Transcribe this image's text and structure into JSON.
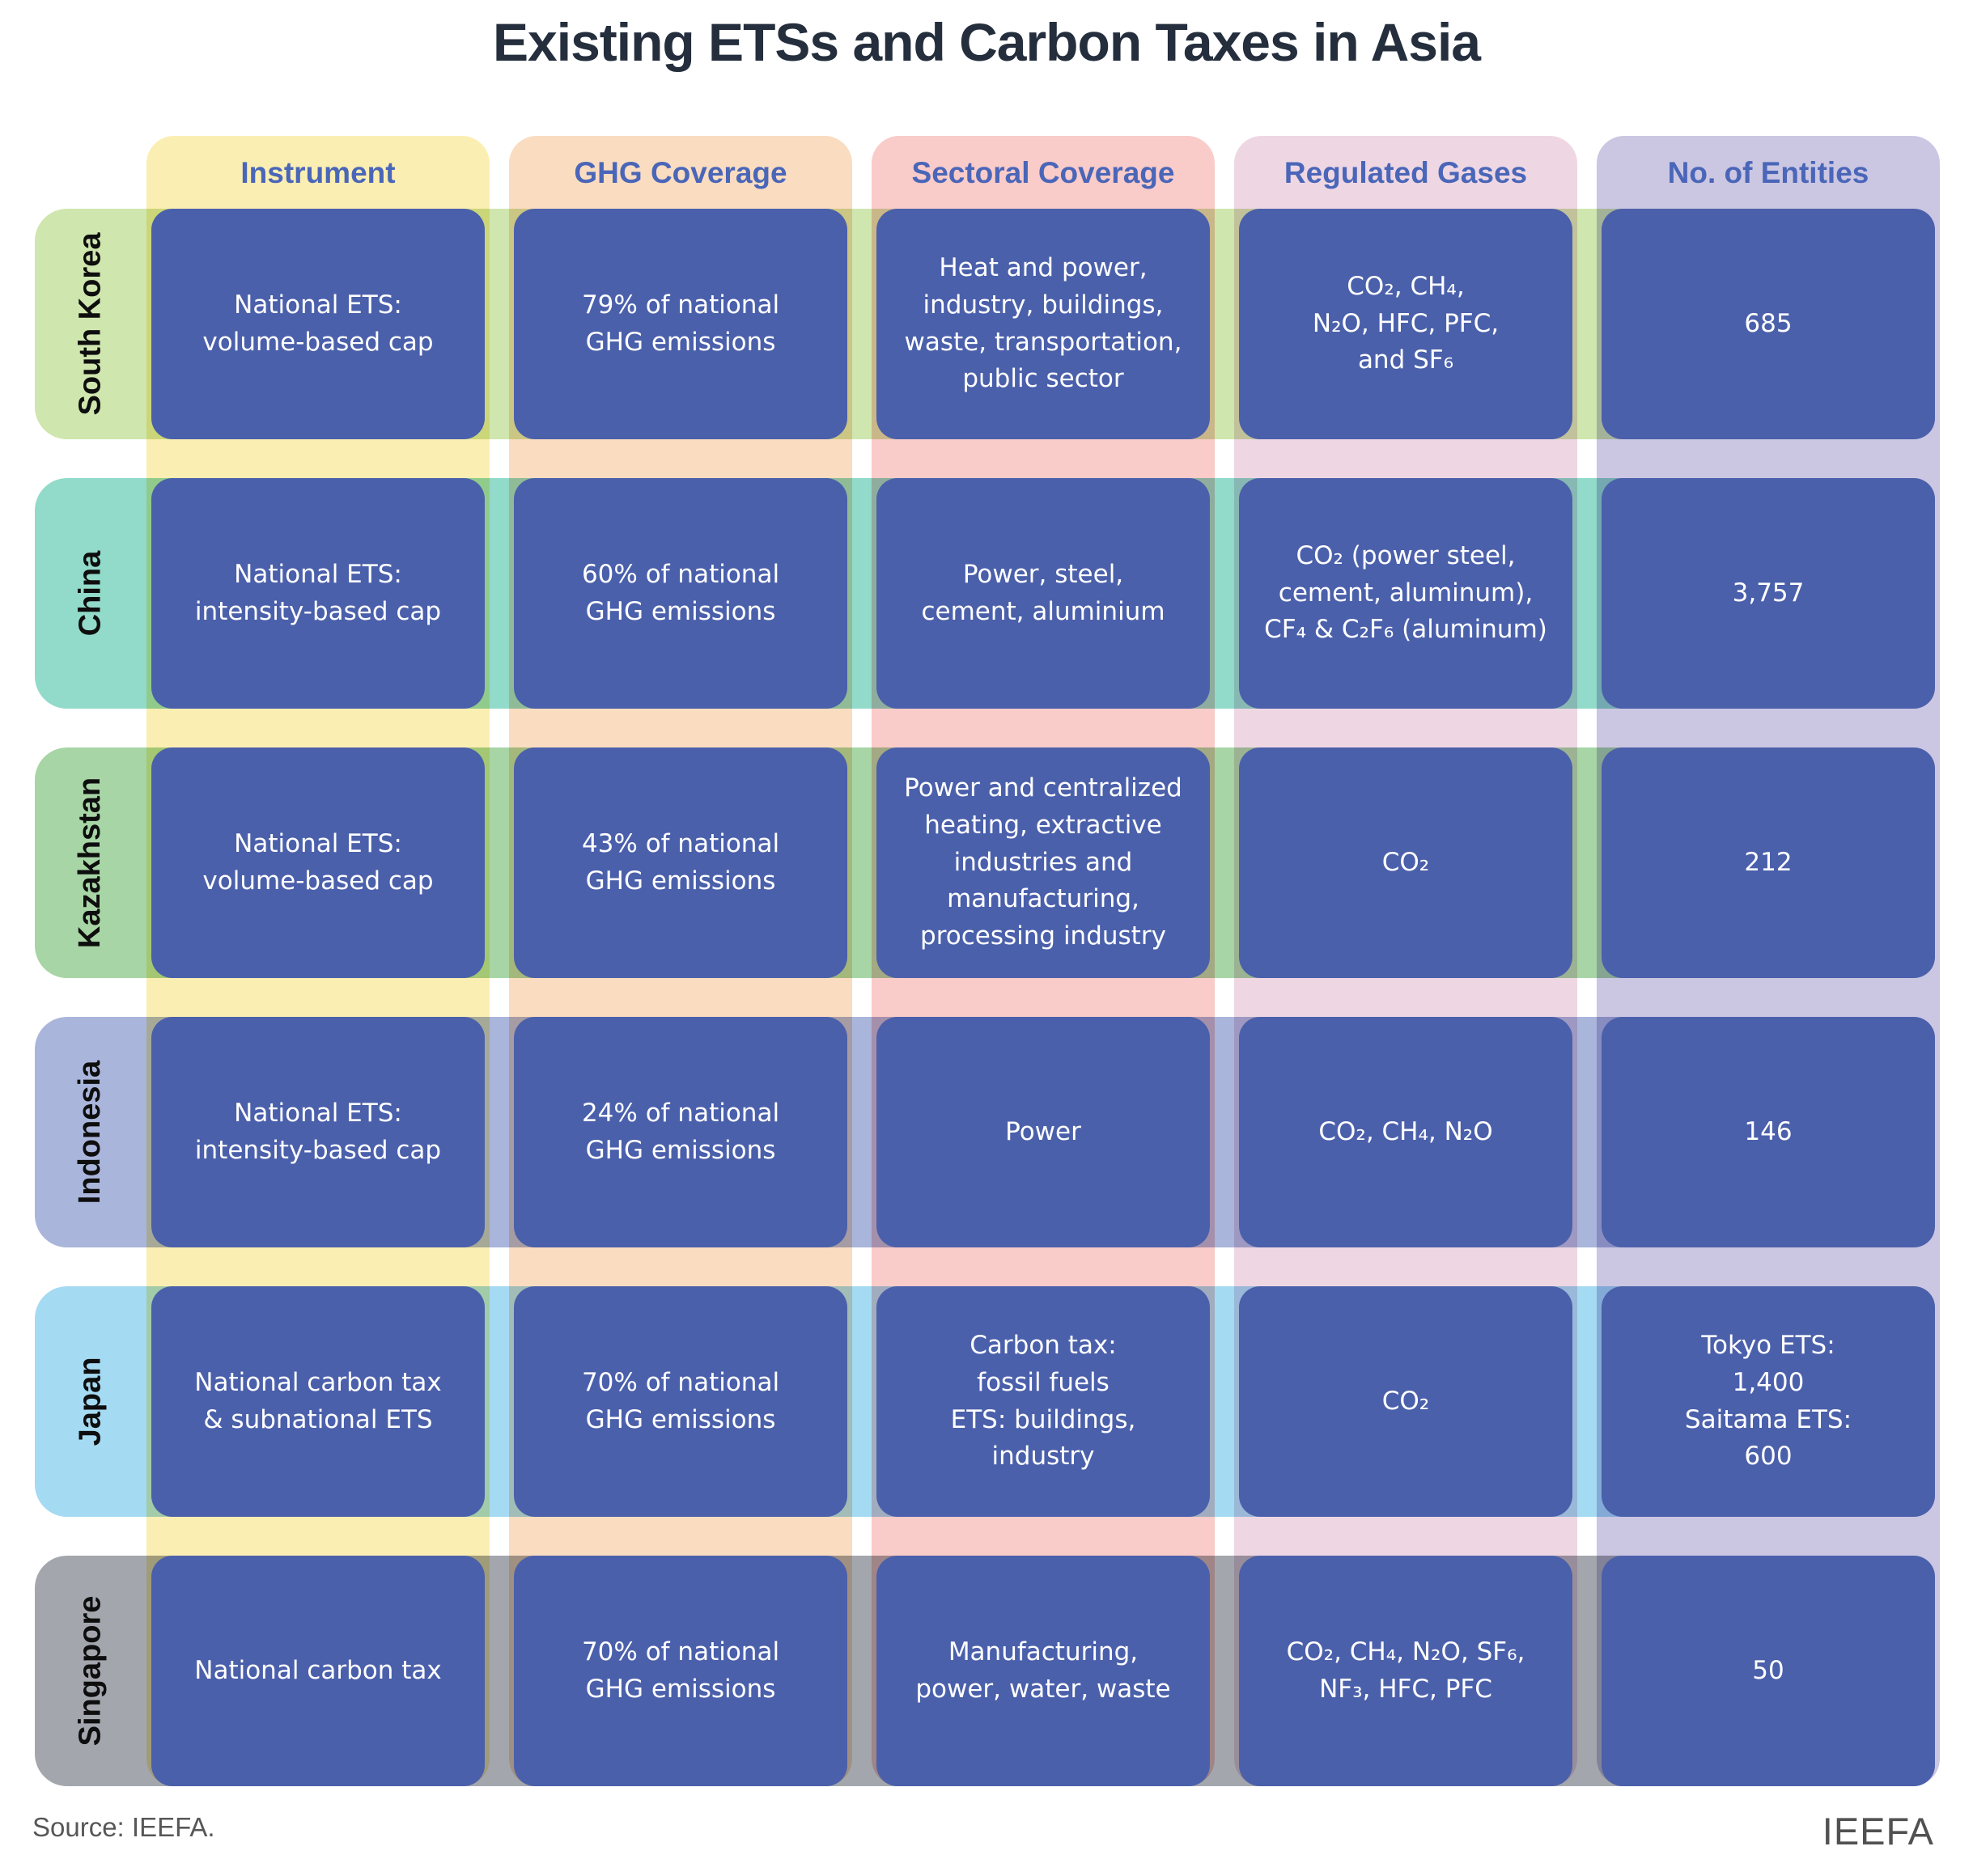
{
  "chart_data": {
    "type": "table",
    "title": "Existing ETSs and Carbon Taxes in Asia",
    "columns": [
      "Instrument",
      "GHG Coverage",
      "Sectoral Coverage",
      "Regulated Gases",
      "No. of Entities"
    ],
    "rows": [
      {
        "country": "South Korea",
        "cells": [
          "National ETS:\nvolume-based cap",
          "79% of national\nGHG emissions",
          "Heat and power,\nindustry, buildings,\nwaste, transportation,\npublic sector",
          "CO₂, CH₄,\nN₂O, HFC, PFC,\nand SF₆",
          "685"
        ]
      },
      {
        "country": "China",
        "cells": [
          "National ETS:\nintensity-based cap",
          "60% of national\nGHG emissions",
          "Power, steel,\ncement, aluminium",
          "CO₂ (power steel,\ncement, aluminum),\nCF₄ & C₂F₆ (aluminum)",
          "3,757"
        ]
      },
      {
        "country": "Kazakhstan",
        "cells": [
          "National ETS:\nvolume-based cap",
          "43% of national\nGHG emissions",
          "Power and centralized\nheating, extractive\nindustries and\nmanufacturing,\nprocessing industry",
          "CO₂",
          "212"
        ]
      },
      {
        "country": "Indonesia",
        "cells": [
          "National ETS:\nintensity-based cap",
          "24% of national\nGHG emissions",
          "Power",
          "CO₂, CH₄, N₂O",
          "146"
        ]
      },
      {
        "country": "Japan",
        "cells": [
          "National carbon tax\n& subnational ETS",
          "70% of national\nGHG emissions",
          "Carbon tax:\nfossil fuels\nETS: buildings,\nindustry",
          "CO₂",
          "Tokyo ETS:\n1,400\nSaitama ETS:\n600"
        ]
      },
      {
        "country": "Singapore",
        "cells": [
          "National carbon tax",
          "70% of national\nGHG emissions",
          "Manufacturing,\npower, water, waste",
          "CO₂, CH₄, N₂O, SF₆,\nNF₃, HFC, PFC",
          "50"
        ]
      }
    ]
  },
  "footer": {
    "source": "Source: IEEFA.",
    "brand": "IEEFA"
  },
  "palette": {
    "title-color": "#242e3d",
    "header-text": "#4a66b8",
    "cell-bg": "#4b60ab",
    "cell-text": "#ffffff",
    "source-text": "#575757",
    "col-instrument": "#fbeeb2",
    "col-ghg": "#fadcc0",
    "col-sectoral": "#f9cbc9",
    "col-gases": "#eed7e3",
    "col-entities": "#cbc6e2",
    "row-south-korea": "#cfe6ae",
    "row-china": "#92dac9",
    "row-kazakhstan": "#a7d5a5",
    "row-indonesia": "#a9b5da",
    "row-japan": "#a5daf3",
    "row-singapore": "#a3a7ad"
  }
}
